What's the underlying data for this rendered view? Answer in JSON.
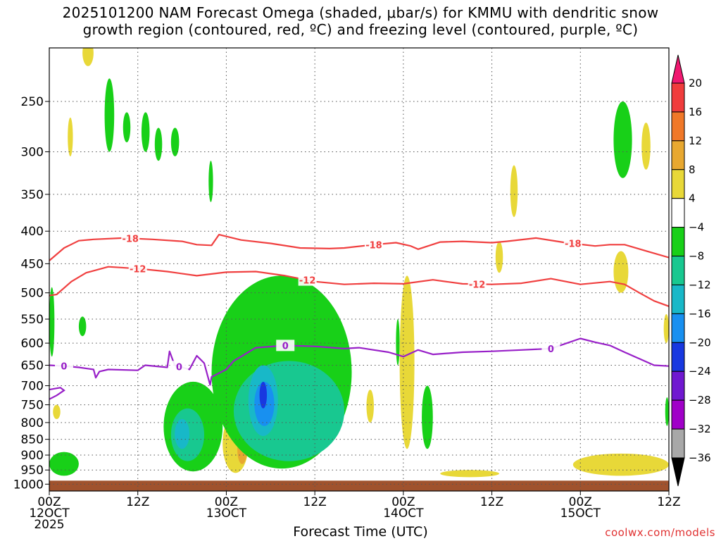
{
  "title_line1": "2025101200 NAM Forecast Omega (shaded, μbar/s) for KMMU with dendritic snow",
  "title_line2": "growth region (contoured, red, ºC) and freezing level (contoured, purple, ºC)",
  "xlabel": "Forecast Time (UTC)",
  "credit": "coolwx.com/models",
  "chart_data": {
    "type": "heatmap",
    "x_unit": "forecast hour",
    "x_range_hours": [
      0,
      84
    ],
    "y_unit": "hPa",
    "y_range": [
      1025,
      200
    ],
    "y_ticks": [
      250,
      300,
      350,
      400,
      450,
      500,
      550,
      600,
      650,
      700,
      750,
      800,
      850,
      900,
      950,
      1000
    ],
    "x_ticks": [
      {
        "hour": 0,
        "lines": [
          "00Z",
          "12OCT",
          "2025"
        ]
      },
      {
        "hour": 12,
        "lines": [
          "12Z"
        ]
      },
      {
        "hour": 24,
        "lines": [
          "00Z",
          "13OCT"
        ]
      },
      {
        "hour": 36,
        "lines": [
          "12Z"
        ]
      },
      {
        "hour": 48,
        "lines": [
          "00Z",
          "14OCT"
        ]
      },
      {
        "hour": 60,
        "lines": [
          "12Z"
        ]
      },
      {
        "hour": 72,
        "lines": [
          "00Z",
          "15OCT"
        ]
      },
      {
        "hour": 84,
        "lines": [
          "12Z"
        ]
      }
    ],
    "grid": true,
    "colorbar": {
      "labels": [
        "20",
        "16",
        "12",
        "8",
        "4",
        "−4",
        "−8",
        "−12",
        "−16",
        "−20",
        "−24",
        "−28",
        "−32",
        "−36"
      ],
      "colors": [
        "#f01870",
        "#f03c3c",
        "#f07828",
        "#e8a830",
        "#e8d838",
        "#ffffff",
        "#18d018",
        "#18c890",
        "#18b8c8",
        "#1890f0",
        "#1838e0",
        "#7018d0",
        "#a000c8",
        "#a8a8a8",
        "#000000"
      ]
    },
    "series": [
      {
        "color": "#f04040",
        "contour_label": "-18",
        "points": [
          [
            0,
            445
          ],
          [
            2,
            425
          ],
          [
            4,
            414
          ],
          [
            6,
            412
          ],
          [
            10,
            410
          ],
          [
            14,
            412
          ],
          [
            18,
            415
          ],
          [
            20,
            420
          ],
          [
            22,
            421
          ],
          [
            23,
            405
          ],
          [
            26,
            413
          ],
          [
            30,
            418
          ],
          [
            34,
            425
          ],
          [
            38,
            426
          ],
          [
            40,
            425
          ],
          [
            44,
            420
          ],
          [
            47,
            417
          ],
          [
            49,
            422
          ],
          [
            50,
            427
          ],
          [
            53,
            416
          ],
          [
            56,
            415
          ],
          [
            60,
            417
          ],
          [
            62,
            415
          ],
          [
            66,
            410
          ],
          [
            70,
            417
          ],
          [
            74,
            422
          ],
          [
            76,
            420
          ],
          [
            78,
            420
          ],
          [
            81,
            430
          ],
          [
            84,
            440
          ]
        ],
        "label_hours": [
          11,
          44,
          71
        ]
      },
      {
        "color": "#f04040",
        "contour_label": "-12",
        "points": [
          [
            0,
            505
          ],
          [
            1,
            503
          ],
          [
            3,
            480
          ],
          [
            5,
            465
          ],
          [
            8,
            455
          ],
          [
            12,
            458
          ],
          [
            16,
            463
          ],
          [
            20,
            470
          ],
          [
            24,
            464
          ],
          [
            28,
            463
          ],
          [
            32,
            470
          ],
          [
            36,
            480
          ],
          [
            40,
            485
          ],
          [
            44,
            483
          ],
          [
            48,
            484
          ],
          [
            52,
            477
          ],
          [
            56,
            484
          ],
          [
            60,
            485
          ],
          [
            64,
            483
          ],
          [
            68,
            475
          ],
          [
            72,
            485
          ],
          [
            76,
            480
          ],
          [
            78,
            485
          ],
          [
            80,
            500
          ],
          [
            82,
            515
          ],
          [
            84,
            525
          ]
        ],
        "label_hours": [
          12,
          35,
          58
        ]
      },
      {
        "color": "#9820c8",
        "contour_label": "0",
        "points": [
          [
            0,
            650
          ],
          [
            2,
            652
          ],
          [
            4,
            655
          ],
          [
            6,
            660
          ],
          [
            6.3,
            680
          ],
          [
            6.8,
            665
          ],
          [
            8,
            660
          ],
          [
            12,
            662
          ],
          [
            13,
            650
          ],
          [
            16,
            655
          ],
          [
            16.3,
            618
          ],
          [
            17,
            650
          ],
          [
            19,
            660
          ],
          [
            20,
            628
          ],
          [
            21,
            645
          ],
          [
            21.8,
            698
          ],
          [
            22,
            678
          ],
          [
            24,
            660
          ],
          [
            25,
            640
          ],
          [
            26,
            630
          ],
          [
            28,
            610
          ],
          [
            32,
            605
          ],
          [
            36,
            607
          ],
          [
            40,
            612
          ],
          [
            42,
            610
          ],
          [
            44,
            615
          ],
          [
            46,
            620
          ],
          [
            48,
            630
          ],
          [
            50,
            615
          ],
          [
            52,
            625
          ],
          [
            56,
            620
          ],
          [
            60,
            618
          ],
          [
            64,
            615
          ],
          [
            68,
            612
          ],
          [
            72,
            590
          ],
          [
            74,
            598
          ],
          [
            76,
            605
          ],
          [
            78,
            620
          ],
          [
            80,
            635
          ],
          [
            82,
            650
          ],
          [
            84,
            652
          ]
        ],
        "extra": [
          [
            0,
            735
          ],
          [
            1,
            725
          ],
          [
            2,
            712
          ],
          [
            1.5,
            705
          ],
          [
            0,
            710
          ]
        ],
        "label_hours": [
          2,
          17.6,
          32,
          68
        ]
      }
    ],
    "shaded_regions": [
      {
        "level": "4 to 8",
        "color": "#e8d838",
        "x": [
          4.5,
          6
        ],
        "y": [
          220,
          200
        ]
      },
      {
        "level": "4 to 8",
        "color": "#e8d838",
        "x": [
          2.5,
          3.2
        ],
        "y": [
          305,
          265
        ]
      },
      {
        "level": "-4 to -8",
        "color": "#18d018",
        "x": [
          7.5,
          8.8
        ],
        "y": [
          300,
          230
        ]
      },
      {
        "level": "-4 to -8",
        "color": "#18d018",
        "x": [
          10,
          11
        ],
        "y": [
          290,
          260
        ]
      },
      {
        "level": "-4 to -8",
        "color": "#18d018",
        "x": [
          12.5,
          13.6
        ],
        "y": [
          300,
          260
        ]
      },
      {
        "level": "-4 to -8",
        "color": "#18d018",
        "x": [
          14.3,
          15.3
        ],
        "y": [
          310,
          275
        ]
      },
      {
        "level": "-4 to -8",
        "color": "#18d018",
        "x": [
          16.5,
          17.6
        ],
        "y": [
          305,
          275
        ]
      },
      {
        "level": "-4 to -8",
        "color": "#18d018",
        "x": [
          21.6,
          22.2
        ],
        "y": [
          360,
          310
        ]
      },
      {
        "level": "-4 to -8",
        "color": "#18d018",
        "x": [
          0,
          0.7
        ],
        "y": [
          630,
          490
        ]
      },
      {
        "level": "-4 to -8",
        "color": "#18d018",
        "x": [
          4,
          5
        ],
        "y": [
          585,
          545
        ]
      },
      {
        "level": "4 to 8",
        "color": "#e8d838",
        "x": [
          0.5,
          1.5
        ],
        "y": [
          790,
          750
        ]
      },
      {
        "level": "-4 to -8",
        "color": "#18d018",
        "x": [
          0,
          4
        ],
        "y": [
          970,
          890
        ]
      },
      {
        "level": "-4 to -8",
        "color": "#18d018",
        "x": [
          15.5,
          23.5
        ],
        "y": [
          955,
          690
        ]
      },
      {
        "level": "-8 to -12",
        "color": "#18c890",
        "x": [
          16.5,
          21
        ],
        "y": [
          920,
          760
        ]
      },
      {
        "level": "-12 to -16",
        "color": "#18b8c8",
        "x": [
          17,
          19
        ],
        "y": [
          880,
          790
        ]
      },
      {
        "level": "4 to 8",
        "color": "#e8d838",
        "x": [
          23.5,
          27
        ],
        "y": [
          960,
          775
        ]
      },
      {
        "level": "8 to 12",
        "color": "#e8a830",
        "x": [
          25.5,
          26.8
        ],
        "y": [
          930,
          840
        ]
      },
      {
        "level": "-4 to -8",
        "color": "#18d018",
        "x": [
          22,
          41
        ],
        "y": [
          945,
          470
        ]
      },
      {
        "level": "-8 to -12",
        "color": "#18c890",
        "x": [
          25,
          40
        ],
        "y": [
          920,
          640
        ]
      },
      {
        "level": "-12 to -16",
        "color": "#18b8c8",
        "x": [
          27,
          31
        ],
        "y": [
          840,
          650
        ]
      },
      {
        "level": "-16 to -20",
        "color": "#1890f0",
        "x": [
          27.8,
          30.5
        ],
        "y": [
          810,
          690
        ]
      },
      {
        "level": "-20 to -24",
        "color": "#1838e0",
        "x": [
          28.5,
          29.5
        ],
        "y": [
          760,
          690
        ]
      },
      {
        "level": "-4 to -8",
        "color": "#18d018",
        "x": [
          47,
          47.5
        ],
        "y": [
          650,
          550
        ]
      },
      {
        "level": "4 to 8",
        "color": "#e8d838",
        "x": [
          47.5,
          49.5
        ],
        "y": [
          880,
          470
        ]
      },
      {
        "level": "4 to 8",
        "color": "#e8d838",
        "x": [
          43,
          44
        ],
        "y": [
          800,
          710
        ]
      },
      {
        "level": "-4 to -8",
        "color": "#18d018",
        "x": [
          50.5,
          52
        ],
        "y": [
          880,
          700
        ]
      },
      {
        "level": "4 to 8",
        "color": "#e8d838",
        "x": [
          62.5,
          63.5
        ],
        "y": [
          380,
          315
        ]
      },
      {
        "level": "4 to 8",
        "color": "#e8d838",
        "x": [
          60.5,
          61.5
        ],
        "y": [
          465,
          415
        ]
      },
      {
        "level": "-4 to -8",
        "color": "#18d018",
        "x": [
          76.5,
          79
        ],
        "y": [
          330,
          250
        ]
      },
      {
        "level": "4 to 8",
        "color": "#e8d838",
        "x": [
          80.3,
          81.5
        ],
        "y": [
          320,
          270
        ]
      },
      {
        "level": "4 to 8",
        "color": "#e8d838",
        "x": [
          76.5,
          78.5
        ],
        "y": [
          500,
          430
        ]
      },
      {
        "level": "4 to 8",
        "color": "#e8d838",
        "x": [
          53,
          61
        ],
        "y": [
          975,
          950
        ]
      },
      {
        "level": "4 to 8",
        "color": "#e8d838",
        "x": [
          71,
          84
        ],
        "y": [
          970,
          895
        ]
      },
      {
        "level": "4 to 8",
        "color": "#e8d838",
        "x": [
          83.3,
          84
        ],
        "y": [
          600,
          540
        ]
      },
      {
        "level": "-4 to -8",
        "color": "#18d018",
        "x": [
          83.5,
          84
        ],
        "y": [
          810,
          730
        ]
      }
    ],
    "surface": {
      "color": "#a0522d",
      "top_hPa": 1000
    }
  }
}
